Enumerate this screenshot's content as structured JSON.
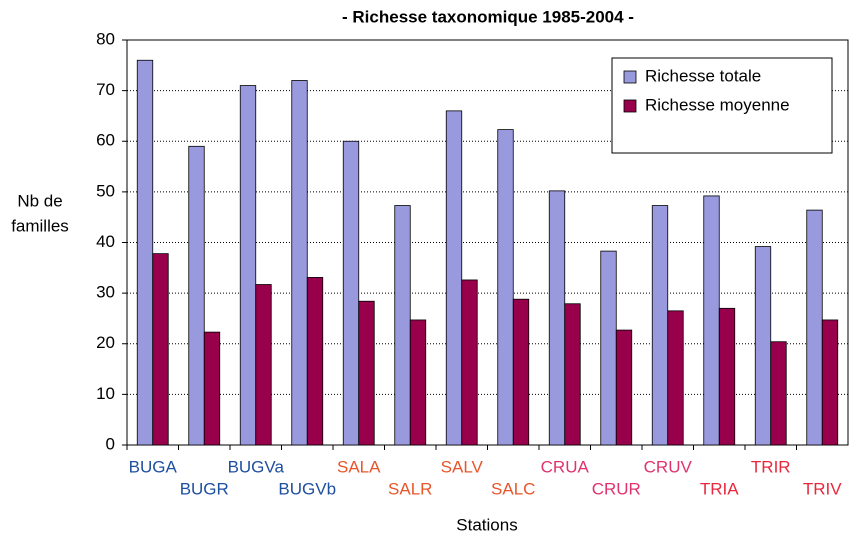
{
  "chart_data": {
    "type": "bar",
    "title": "- Richesse taxonomique 1985-2004 -",
    "y_label": [
      "Nb de",
      "familles"
    ],
    "x_label": "Stations",
    "categories": [
      "BUGA",
      "BUGR",
      "BUGVa",
      "BUGVb",
      "SALA",
      "SALR",
      "SALV",
      "SALC",
      "CRUA",
      "CRUR",
      "CRUV",
      "TRIA",
      "TRIR",
      "TRIV"
    ],
    "category_colors": [
      "#1f4fa0",
      "#1f4fa0",
      "#1f4fa0",
      "#1f4fa0",
      "#e8552a",
      "#e8552a",
      "#e8552a",
      "#e8552a",
      "#e0336e",
      "#e0336e",
      "#e0336e",
      "#e8283c",
      "#e8283c",
      "#e8283c"
    ],
    "series": [
      {
        "name": "Richesse totale",
        "color": "#9999dd",
        "values": [
          76,
          59,
          71,
          72,
          60,
          47.3,
          66,
          62.3,
          50.2,
          38.3,
          47.3,
          49.2,
          39.2,
          46.4
        ]
      },
      {
        "name": "Richesse moyenne",
        "color": "#99004c",
        "values": [
          37.8,
          22.3,
          31.7,
          33.1,
          28.4,
          24.7,
          32.6,
          28.8,
          27.9,
          22.7,
          26.5,
          27,
          20.4,
          24.7
        ]
      }
    ],
    "ylim": [
      0,
      80
    ],
    "yticks": [
      0,
      10,
      20,
      30,
      40,
      50,
      60,
      70,
      80
    ],
    "grid": true,
    "legend": "upper right"
  }
}
